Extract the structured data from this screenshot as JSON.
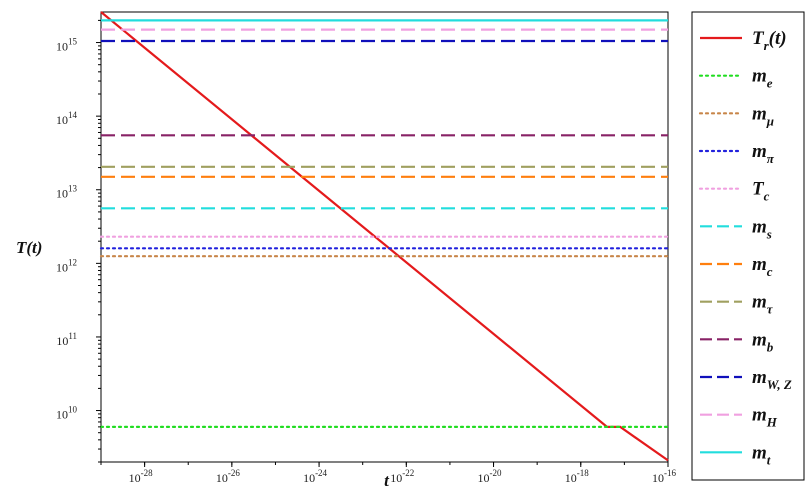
{
  "chart_data": {
    "type": "line",
    "xlabel": "t",
    "ylabel": "T(t)",
    "x_scale": "log",
    "y_scale": "log",
    "xlim": [
      1e-29,
      1e-16
    ],
    "ylim": [
      2000000000.0,
      2600000000000000.0
    ],
    "x_ticks": [
      1e-28,
      1e-26,
      1e-24,
      1e-22,
      1e-20,
      1e-18,
      1e-16
    ],
    "x_tick_labels": [
      {
        "base": "10",
        "exp": "-28"
      },
      {
        "base": "10",
        "exp": "-26"
      },
      {
        "base": "10",
        "exp": "-24"
      },
      {
        "base": "10",
        "exp": "-22"
      },
      {
        "base": "10",
        "exp": "-20"
      },
      {
        "base": "10",
        "exp": "-18"
      },
      {
        "base": "10",
        "exp": "-16"
      }
    ],
    "y_ticks": [
      10000000000.0,
      100000000000.0,
      1000000000000.0,
      10000000000000.0,
      100000000000000.0,
      1000000000000000.0
    ],
    "y_tick_labels": [
      {
        "base": "10",
        "exp": "10"
      },
      {
        "base": "10",
        "exp": "11"
      },
      {
        "base": "10",
        "exp": "12"
      },
      {
        "base": "10",
        "exp": "13"
      },
      {
        "base": "10",
        "exp": "14"
      },
      {
        "base": "10",
        "exp": "15"
      }
    ],
    "grid": false,
    "legend_position": "right-outside",
    "series": [
      {
        "name_main": "T",
        "name_sub": "r",
        "name_tail": "(t)",
        "color": "#e41a1c",
        "style": "solid",
        "x": [
          1e-29,
          4e-18,
          8e-18,
          1e-16
        ],
        "y": [
          2600000000000000.0,
          6000000000.0,
          6000000000.0,
          2100000000.0
        ]
      },
      {
        "name_main": "m",
        "name_sub": "e",
        "color": "#22dd22",
        "style": "dotted",
        "y_const": 6000000000.0
      },
      {
        "name_main": "m",
        "name_sub": "μ",
        "color": "#c8864a",
        "style": "dotted",
        "y_const": 1250000000000.0
      },
      {
        "name_main": "m",
        "name_sub": "π",
        "color": "#2222dd",
        "style": "dotted",
        "y_const": 1600000000000.0
      },
      {
        "name_main": "T",
        "name_sub": "c",
        "color": "#f0a0e0",
        "style": "dotted",
        "y_const": 2300000000000.0
      },
      {
        "name_main": "m",
        "name_sub": "s",
        "color": "#22dddd",
        "style": "dashed",
        "y_const": 5600000000000.0
      },
      {
        "name_main": "m",
        "name_sub": "c",
        "color": "#ff7f0e",
        "style": "dashed",
        "y_const": 15000000000000.0
      },
      {
        "name_main": "m",
        "name_sub": "τ",
        "color": "#a0a060",
        "style": "dashed",
        "y_const": 20500000000000.0
      },
      {
        "name_main": "m",
        "name_sub": "b",
        "color": "#882266",
        "style": "dashed",
        "y_const": 55000000000000.0
      },
      {
        "name_main": "m",
        "name_sub": "W, Z",
        "color": "#1010bb",
        "style": "dashed",
        "y_const": 1050000000000000.0
      },
      {
        "name_main": "m",
        "name_sub": "H",
        "color": "#f0a0e0",
        "style": "dashed",
        "y_const": 1500000000000000.0
      },
      {
        "name_main": "m",
        "name_sub": "t",
        "color": "#22dddd",
        "style": "solid",
        "y_const": 2000000000000000.0
      }
    ]
  }
}
